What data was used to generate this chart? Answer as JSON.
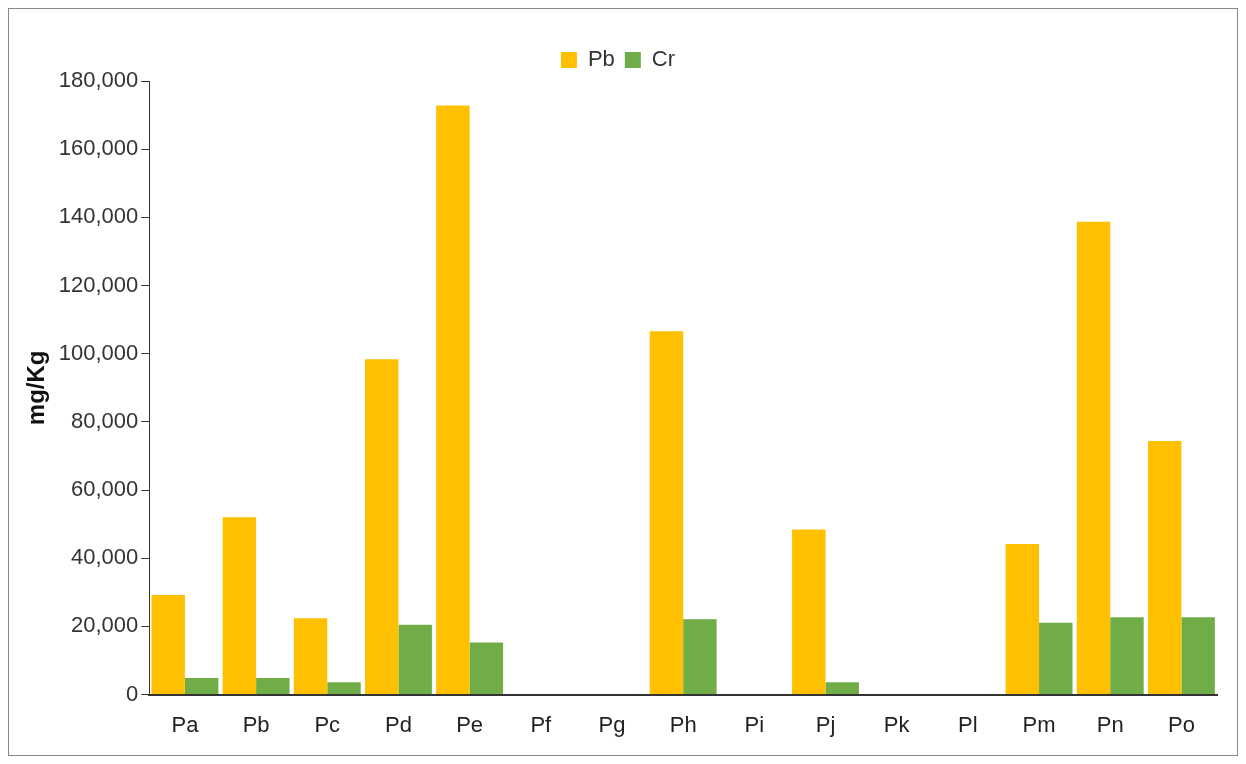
{
  "chart_data": {
    "type": "bar",
    "ylabel": "mg/Kg",
    "categories": [
      "Pa",
      "Pb",
      "Pc",
      "Pd",
      "Pe",
      "Pf",
      "Pg",
      "Ph",
      "Pi",
      "Pj",
      "Pk",
      "Pl",
      "Pm",
      "Pn",
      "Po"
    ],
    "series": [
      {
        "name": "Pb",
        "color": "#ffc000",
        "values": [
          29200,
          52000,
          22400,
          98400,
          172800,
          0,
          0,
          106600,
          0,
          48400,
          0,
          0,
          44200,
          138700,
          74400
        ]
      },
      {
        "name": "Cr",
        "color": "#70ad47",
        "values": [
          4900,
          4900,
          3600,
          20500,
          15300,
          0,
          0,
          22100,
          0,
          3600,
          0,
          0,
          21100,
          22700,
          22700
        ]
      }
    ],
    "ylim": [
      0,
      180000
    ],
    "yticks": [
      0,
      {
        "value": 20000,
        "label": "20,000"
      },
      {
        "value": 40000,
        "label": "40,000"
      },
      {
        "value": 60000,
        "label": "60,000"
      },
      {
        "value": 80000,
        "label": "80,000"
      },
      {
        "value": 100000,
        "label": "100,000"
      },
      {
        "value": 120000,
        "label": "120,000"
      },
      {
        "value": 140000,
        "label": "140,000"
      },
      {
        "value": 160000,
        "label": "160,000"
      },
      {
        "value": 180000,
        "label": "180,000"
      }
    ],
    "grid": false,
    "legend": "top"
  }
}
